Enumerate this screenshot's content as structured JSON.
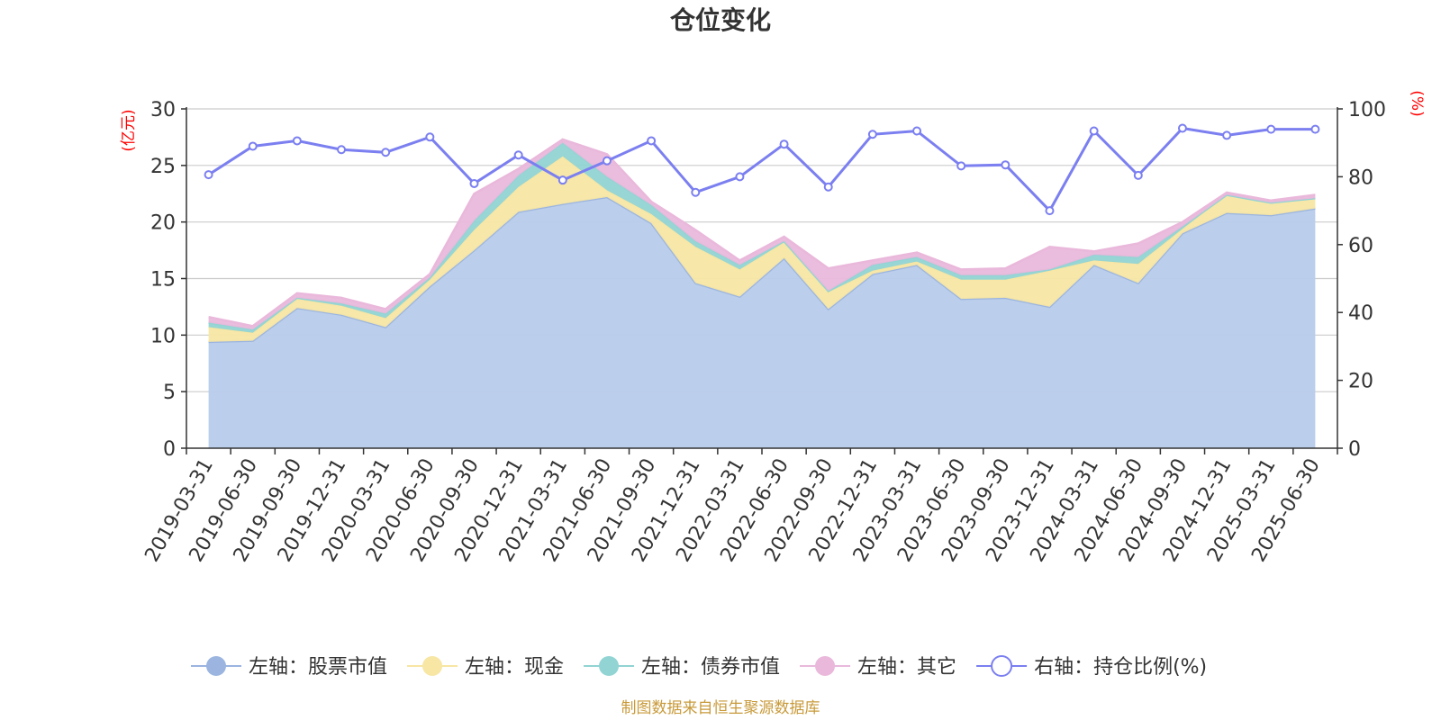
{
  "title": "仓位变化",
  "source": "制图数据来自恒生聚源数据库",
  "colors": {
    "stock": "#9bb5e0",
    "stock_fill": "#b7cbea",
    "cash": "#f7e6a4",
    "bond": "#92d4d4",
    "other": "#e9b8db",
    "ratio": "#7b7ff0",
    "unit": "#ff0000"
  },
  "chart_data": {
    "type": "area",
    "stacked": true,
    "x": [
      "2019-03-31",
      "2019-06-30",
      "2019-09-30",
      "2019-12-31",
      "2020-03-31",
      "2020-06-30",
      "2020-09-30",
      "2020-12-31",
      "2021-03-31",
      "2021-06-30",
      "2021-09-30",
      "2021-12-31",
      "2022-03-31",
      "2022-06-30",
      "2022-09-30",
      "2022-12-31",
      "2023-03-31",
      "2023-06-30",
      "2023-09-30",
      "2023-12-31",
      "2024-03-31",
      "2024-06-30",
      "2024-09-30",
      "2024-12-31",
      "2025-03-31",
      "2025-06-30"
    ],
    "left_axis": {
      "unit": "(亿元)",
      "ylim": [
        0,
        30
      ],
      "ticks": [
        0,
        5,
        10,
        15,
        20,
        25,
        30
      ]
    },
    "right_axis": {
      "unit": "(%)",
      "ylim": [
        0,
        100
      ],
      "ticks": [
        0,
        20,
        40,
        60,
        80,
        100
      ]
    },
    "grid": true,
    "legend_position": "bottom",
    "series": [
      {
        "key": "stock",
        "name": "左轴：股票市值",
        "axis": "left",
        "values": [
          9.4,
          9.5,
          12.4,
          11.8,
          10.7,
          14.3,
          17.5,
          20.9,
          21.6,
          22.2,
          19.9,
          14.6,
          13.4,
          16.8,
          12.3,
          15.4,
          16.2,
          13.2,
          13.3,
          12.5,
          16.2,
          14.6,
          19.0,
          20.8,
          20.6,
          21.2
        ]
      },
      {
        "key": "cash",
        "name": "左轴：现金",
        "axis": "left",
        "values": [
          1.3,
          0.7,
          0.8,
          0.8,
          0.8,
          0.6,
          1.8,
          2.2,
          4.2,
          0.6,
          0.8,
          3.2,
          2.4,
          1.4,
          1.5,
          0.3,
          0.3,
          1.7,
          1.6,
          3.2,
          0.4,
          1.7,
          0.4,
          1.6,
          1.1,
          0.9
        ]
      },
      {
        "key": "bond",
        "name": "左轴：债券市值",
        "axis": "left",
        "values": [
          0.4,
          0.3,
          0.1,
          0.2,
          0.4,
          0.2,
          0.8,
          1.0,
          1.2,
          1.2,
          0.8,
          0.5,
          0.4,
          0.1,
          0.1,
          0.5,
          0.4,
          0.4,
          0.4,
          0.1,
          0.5,
          0.6,
          0.2,
          0.0,
          0.0,
          0.0
        ]
      },
      {
        "key": "other",
        "name": "左轴：其它",
        "axis": "left",
        "values": [
          0.5,
          0.3,
          0.4,
          0.5,
          0.4,
          0.3,
          2.4,
          0.6,
          0.3,
          2.0,
          0.3,
          1.0,
          0.4,
          0.4,
          2.0,
          0.4,
          0.4,
          0.5,
          0.6,
          2.0,
          0.3,
          1.2,
          0.4,
          0.2,
          0.2,
          0.3
        ]
      },
      {
        "key": "ratio",
        "name": "右轴：持仓比例(%)",
        "axis": "right",
        "values": [
          80.6,
          89.0,
          90.6,
          88.0,
          87.2,
          91.7,
          78.0,
          86.4,
          79.0,
          84.7,
          90.6,
          75.4,
          80.0,
          89.6,
          77.0,
          92.5,
          93.5,
          83.2,
          83.5,
          70.0,
          93.5,
          80.4,
          94.3,
          92.2,
          94.0,
          94.0
        ]
      }
    ]
  }
}
